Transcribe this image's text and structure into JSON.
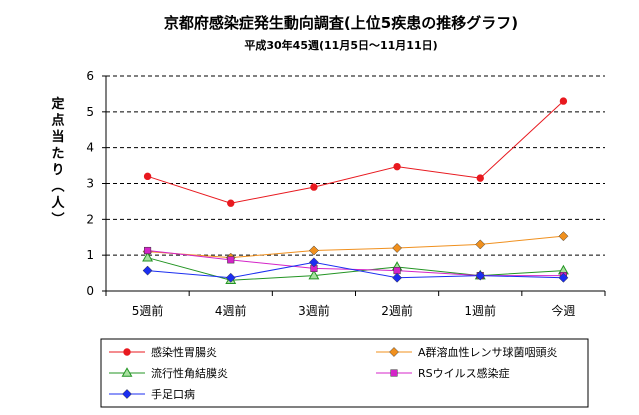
{
  "chart_data": {
    "type": "line",
    "title": "京都府感染症発生動向調査(上位5疾患の推移グラフ)",
    "subtitle": "平成30年45週(11月5日～11月11日)",
    "ylabel": "定点当たり(人)",
    "xlabel": "",
    "categories": [
      "5週前",
      "4週前",
      "3週前",
      "2週前",
      "1週前",
      "今週"
    ],
    "ylim": [
      0,
      6
    ],
    "yticks": [
      "0",
      "1",
      "2",
      "3",
      "4",
      "5",
      "6"
    ],
    "grid": "horizontal-dashed",
    "legend_position": "bottom",
    "series": [
      {
        "name": "感染性胃腸炎",
        "color": "#e8191f",
        "marker": "circle",
        "values": [
          3.2,
          2.45,
          2.9,
          3.47,
          3.15,
          5.3
        ]
      },
      {
        "name": "A群溶血性レンサ球菌咽頭炎",
        "color": "#f0901e",
        "marker": "diamond",
        "values": [
          1.1,
          0.93,
          1.13,
          1.2,
          1.3,
          1.53
        ]
      },
      {
        "name": "流行性角結膜炎",
        "color": "#239423",
        "marker": "triangle",
        "values": [
          0.93,
          0.3,
          0.43,
          0.67,
          0.43,
          0.57
        ]
      },
      {
        "name": "RSウイルス感染症",
        "color": "#d424c8",
        "marker": "square",
        "values": [
          1.13,
          0.87,
          0.63,
          0.57,
          0.43,
          0.43
        ]
      },
      {
        "name": "手足口病",
        "color": "#1b2ef0",
        "marker": "diamond",
        "values": [
          0.57,
          0.37,
          0.8,
          0.37,
          0.43,
          0.37
        ]
      }
    ]
  }
}
